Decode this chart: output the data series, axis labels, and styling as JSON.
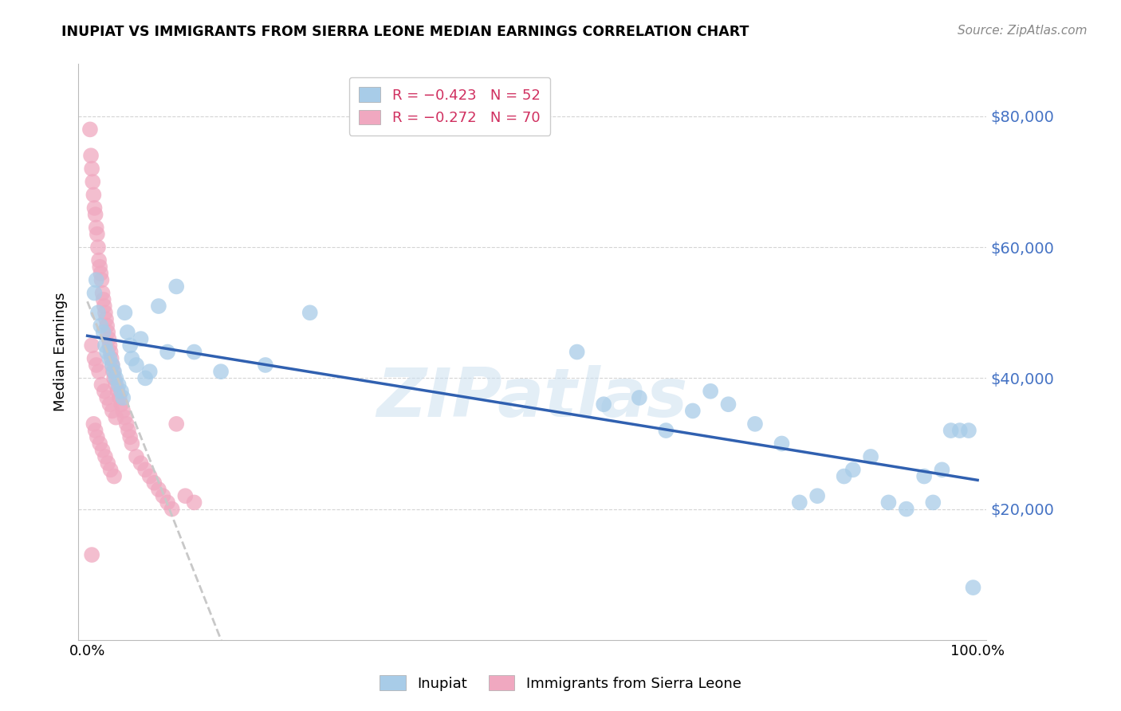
{
  "title": "INUPIAT VS IMMIGRANTS FROM SIERRA LEONE MEDIAN EARNINGS CORRELATION CHART",
  "source": "Source: ZipAtlas.com",
  "ylabel": "Median Earnings",
  "ytick_labels": [
    "$20,000",
    "$40,000",
    "$60,000",
    "$80,000"
  ],
  "ytick_values": [
    20000,
    40000,
    60000,
    80000
  ],
  "ylim": [
    0,
    88000
  ],
  "xlim": [
    -0.01,
    1.01
  ],
  "legend_label1": "Inupiat",
  "legend_label2": "Immigrants from Sierra Leone",
  "watermark": "ZIPatlas",
  "blue_color": "#a8cce8",
  "pink_color": "#f0a8c0",
  "trendline_blue": "#3060b0",
  "trendline_gray": "#c8c8c8",
  "inupiat_x": [
    0.008,
    0.01,
    0.012,
    0.015,
    0.018,
    0.02,
    0.022,
    0.025,
    0.028,
    0.03,
    0.032,
    0.035,
    0.038,
    0.04,
    0.042,
    0.045,
    0.048,
    0.05,
    0.055,
    0.06,
    0.065,
    0.07,
    0.08,
    0.09,
    0.1,
    0.12,
    0.15,
    0.2,
    0.25,
    0.55,
    0.58,
    0.62,
    0.65,
    0.68,
    0.7,
    0.72,
    0.75,
    0.78,
    0.8,
    0.82,
    0.85,
    0.86,
    0.88,
    0.9,
    0.92,
    0.94,
    0.95,
    0.96,
    0.97,
    0.98,
    0.99,
    0.995
  ],
  "inupiat_y": [
    53000,
    55000,
    50000,
    48000,
    47000,
    45000,
    44000,
    43000,
    42000,
    41000,
    40000,
    39000,
    38000,
    37000,
    50000,
    47000,
    45000,
    43000,
    42000,
    46000,
    40000,
    41000,
    51000,
    44000,
    54000,
    44000,
    41000,
    42000,
    50000,
    44000,
    36000,
    37000,
    32000,
    35000,
    38000,
    36000,
    33000,
    30000,
    21000,
    22000,
    25000,
    26000,
    28000,
    21000,
    20000,
    25000,
    21000,
    26000,
    32000,
    32000,
    32000,
    8000
  ],
  "sierra_x": [
    0.003,
    0.004,
    0.005,
    0.006,
    0.007,
    0.008,
    0.009,
    0.01,
    0.011,
    0.012,
    0.013,
    0.014,
    0.015,
    0.016,
    0.017,
    0.018,
    0.019,
    0.02,
    0.021,
    0.022,
    0.023,
    0.024,
    0.025,
    0.026,
    0.027,
    0.028,
    0.029,
    0.03,
    0.032,
    0.034,
    0.036,
    0.038,
    0.04,
    0.042,
    0.044,
    0.046,
    0.048,
    0.05,
    0.055,
    0.06,
    0.065,
    0.07,
    0.075,
    0.08,
    0.085,
    0.09,
    0.095,
    0.1,
    0.11,
    0.12,
    0.005,
    0.008,
    0.01,
    0.013,
    0.016,
    0.019,
    0.022,
    0.025,
    0.028,
    0.032,
    0.005,
    0.007,
    0.009,
    0.011,
    0.014,
    0.017,
    0.02,
    0.023,
    0.026,
    0.03
  ],
  "sierra_y": [
    78000,
    74000,
    72000,
    70000,
    68000,
    66000,
    65000,
    63000,
    62000,
    60000,
    58000,
    57000,
    56000,
    55000,
    53000,
    52000,
    51000,
    50000,
    49000,
    48000,
    47000,
    46000,
    45000,
    44000,
    43000,
    42000,
    41000,
    40000,
    39000,
    38000,
    37000,
    36000,
    35000,
    34000,
    33000,
    32000,
    31000,
    30000,
    28000,
    27000,
    26000,
    25000,
    24000,
    23000,
    22000,
    21000,
    20000,
    33000,
    22000,
    21000,
    45000,
    43000,
    42000,
    41000,
    39000,
    38000,
    37000,
    36000,
    35000,
    34000,
    13000,
    33000,
    32000,
    31000,
    30000,
    29000,
    28000,
    27000,
    26000,
    25000
  ]
}
